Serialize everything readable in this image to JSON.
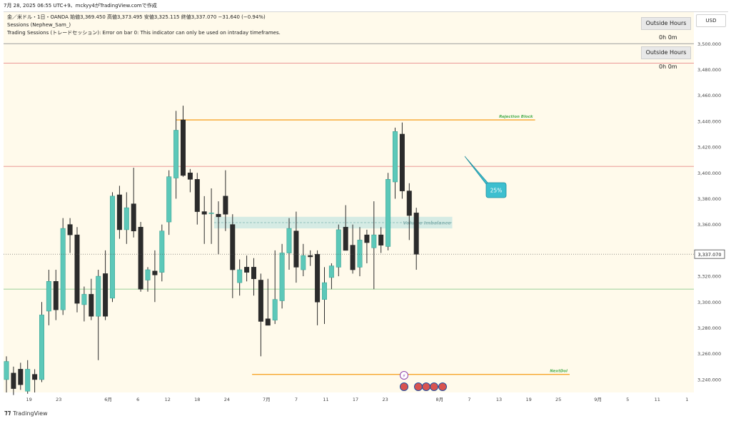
{
  "header": {
    "title": "7月 28, 2025 06:55 UTC+9、mckyy4がTradingView.comで作成"
  },
  "legend": {
    "symbol_line": "金／米ドル・1日・OANDA  始値3,369.450  高値3,373.495  安値3,325.115  終値3,337.070  −31.640 (−0.94%)",
    "indicator1": "Sessions (Nephew_Sam_)",
    "indicator2": "Trading Sessions (トレードセッション): Error on bar 0: This indicator can only be used on intraday timeframes."
  },
  "badges": {
    "b1_label": "Outside Hours",
    "b1_sub": "0h 0m",
    "b2_label": "Outside Hours",
    "b2_sub": "0h 0m"
  },
  "currency": "USD",
  "brand": "TradingView",
  "colors": {
    "up": "#5cc8b9",
    "down": "#2b2b2b",
    "bg": "#fffaeb",
    "orange": "#f7a529",
    "red": "#e88a8a",
    "green": "#8ec98e",
    "zone": "#bfe3e0",
    "callout": "#3dbfcf"
  },
  "chart_data": {
    "type": "candlestick",
    "ylim": [
      3230,
      3525
    ],
    "y_ticks": [
      3240,
      3260,
      3280,
      3300,
      3320,
      3340,
      3360,
      3380,
      3400,
      3420,
      3440,
      3460,
      3480,
      3500
    ],
    "y_tick_labels": [
      "3,240.000",
      "3,260.000",
      "3,280.000",
      "3,300.000",
      "3,320.000",
      "3,340.000",
      "3,360.000",
      "3,380.000",
      "3,400.000",
      "3,420.000",
      "3,440.000",
      "3,460.000",
      "3,480.000",
      "3,500.000"
    ],
    "x_ticks": [
      {
        "slot": 3.2,
        "label": "19"
      },
      {
        "slot": 7.4,
        "label": "23"
      },
      {
        "slot": 14.4,
        "label": "6月"
      },
      {
        "slot": 18.6,
        "label": "6"
      },
      {
        "slot": 22.8,
        "label": "12"
      },
      {
        "slot": 27.0,
        "label": "18"
      },
      {
        "slot": 31.2,
        "label": "24"
      },
      {
        "slot": 36.8,
        "label": "7月"
      },
      {
        "slot": 41.0,
        "label": "7"
      },
      {
        "slot": 45.2,
        "label": "11"
      },
      {
        "slot": 49.4,
        "label": "17"
      },
      {
        "slot": 53.6,
        "label": "23"
      },
      {
        "slot": 61.3,
        "label": "8月"
      },
      {
        "slot": 65.5,
        "label": "7"
      },
      {
        "slot": 69.7,
        "label": "13"
      },
      {
        "slot": 73.9,
        "label": "19"
      },
      {
        "slot": 78.1,
        "label": "25"
      },
      {
        "slot": 83.7,
        "label": "9月"
      },
      {
        "slot": 87.9,
        "label": "5"
      },
      {
        "slot": 92.1,
        "label": "11"
      },
      {
        "slot": 96.3,
        "label": "1"
      }
    ],
    "candles": [
      {
        "o": 3240,
        "h": 3258,
        "l": 3230,
        "c": 3254
      },
      {
        "o": 3245,
        "h": 3250,
        "l": 3228,
        "c": 3233
      },
      {
        "o": 3248,
        "h": 3253,
        "l": 3232,
        "c": 3236
      },
      {
        "o": 3231,
        "h": 3255,
        "l": 3229,
        "c": 3248
      },
      {
        "o": 3244,
        "h": 3248,
        "l": 3230,
        "c": 3240
      },
      {
        "o": 3240,
        "h": 3300,
        "l": 3238,
        "c": 3290
      },
      {
        "o": 3293,
        "h": 3325,
        "l": 3282,
        "c": 3316
      },
      {
        "o": 3316,
        "h": 3325,
        "l": 3286,
        "c": 3294
      },
      {
        "o": 3294,
        "h": 3365,
        "l": 3290,
        "c": 3357
      },
      {
        "o": 3360,
        "h": 3365,
        "l": 3338,
        "c": 3352
      },
      {
        "o": 3352,
        "h": 3358,
        "l": 3292,
        "c": 3299
      },
      {
        "o": 3298,
        "h": 3312,
        "l": 3285,
        "c": 3306
      },
      {
        "o": 3306,
        "h": 3318,
        "l": 3286,
        "c": 3289
      },
      {
        "o": 3289,
        "h": 3325,
        "l": 3255,
        "c": 3320
      },
      {
        "o": 3322,
        "h": 3340,
        "l": 3286,
        "c": 3289
      },
      {
        "o": 3303,
        "h": 3385,
        "l": 3300,
        "c": 3382
      },
      {
        "o": 3383,
        "h": 3390,
        "l": 3349,
        "c": 3356
      },
      {
        "o": 3356,
        "h": 3385,
        "l": 3345,
        "c": 3373
      },
      {
        "o": 3376,
        "h": 3404,
        "l": 3350,
        "c": 3355
      },
      {
        "o": 3358,
        "h": 3362,
        "l": 3308,
        "c": 3310
      },
      {
        "o": 3317,
        "h": 3327,
        "l": 3308,
        "c": 3325
      },
      {
        "o": 3324,
        "h": 3340,
        "l": 3300,
        "c": 3321
      },
      {
        "o": 3323,
        "h": 3360,
        "l": 3316,
        "c": 3355
      },
      {
        "o": 3362,
        "h": 3402,
        "l": 3352,
        "c": 3397
      },
      {
        "o": 3396,
        "h": 3448,
        "l": 3380,
        "c": 3433
      },
      {
        "o": 3441,
        "h": 3452,
        "l": 3397,
        "c": 3398
      },
      {
        "o": 3400,
        "h": 3403,
        "l": 3385,
        "c": 3395
      },
      {
        "o": 3395,
        "h": 3400,
        "l": 3360,
        "c": 3370
      },
      {
        "o": 3370,
        "h": 3382,
        "l": 3345,
        "c": 3368
      },
      {
        "o": 3369,
        "h": 3388,
        "l": 3345,
        "c": 3369
      },
      {
        "o": 3368,
        "h": 3378,
        "l": 3337,
        "c": 3366
      },
      {
        "o": 3382,
        "h": 3402,
        "l": 3355,
        "c": 3368
      },
      {
        "o": 3360,
        "h": 3368,
        "l": 3303,
        "c": 3325
      },
      {
        "o": 3315,
        "h": 3333,
        "l": 3305,
        "c": 3325
      },
      {
        "o": 3327,
        "h": 3336,
        "l": 3316,
        "c": 3323
      },
      {
        "o": 3327,
        "h": 3334,
        "l": 3305,
        "c": 3318
      },
      {
        "o": 3317,
        "h": 3322,
        "l": 3258,
        "c": 3285
      },
      {
        "o": 3287,
        "h": 3318,
        "l": 3282,
        "c": 3282
      },
      {
        "o": 3286,
        "h": 3340,
        "l": 3283,
        "c": 3302
      },
      {
        "o": 3301,
        "h": 3345,
        "l": 3295,
        "c": 3338
      },
      {
        "o": 3338,
        "h": 3365,
        "l": 3325,
        "c": 3357
      },
      {
        "o": 3355,
        "h": 3370,
        "l": 3315,
        "c": 3327
      },
      {
        "o": 3325,
        "h": 3345,
        "l": 3320,
        "c": 3336
      },
      {
        "o": 3336,
        "h": 3340,
        "l": 3328,
        "c": 3335
      },
      {
        "o": 3337,
        "h": 3340,
        "l": 3282,
        "c": 3300
      },
      {
        "o": 3302,
        "h": 3327,
        "l": 3283,
        "c": 3315
      },
      {
        "o": 3319,
        "h": 3330,
        "l": 3310,
        "c": 3328
      },
      {
        "o": 3327,
        "h": 3360,
        "l": 3320,
        "c": 3356
      },
      {
        "o": 3358,
        "h": 3375,
        "l": 3340,
        "c": 3340
      },
      {
        "o": 3344,
        "h": 3360,
        "l": 3322,
        "c": 3325
      },
      {
        "o": 3327,
        "h": 3358,
        "l": 3320,
        "c": 3348
      },
      {
        "o": 3352,
        "h": 3356,
        "l": 3330,
        "c": 3346
      },
      {
        "o": 3342,
        "h": 3378,
        "l": 3310,
        "c": 3352
      },
      {
        "o": 3352,
        "h": 3358,
        "l": 3338,
        "c": 3344
      },
      {
        "o": 3343,
        "h": 3400,
        "l": 3340,
        "c": 3395
      },
      {
        "o": 3393,
        "h": 3435,
        "l": 3380,
        "c": 3432
      },
      {
        "o": 3430,
        "h": 3439,
        "l": 3380,
        "c": 3386
      },
      {
        "o": 3386,
        "h": 3392,
        "l": 3348,
        "c": 3367
      },
      {
        "o": 3369,
        "h": 3373,
        "l": 3325,
        "c": 3337
      }
    ],
    "levels": [
      {
        "name": "Rejection Block",
        "price": 3441,
        "from": 25,
        "to": 77,
        "color": "orange"
      },
      {
        "name": "NextDol",
        "price": 3244,
        "from": 36,
        "to": 82,
        "color": "orange"
      },
      {
        "name": "",
        "price": 3500,
        "from": 0,
        "to": 100,
        "color": "gray"
      },
      {
        "name": "",
        "price": 3485,
        "from": 0,
        "to": 100,
        "color": "red"
      },
      {
        "name": "",
        "price": 3405,
        "from": 0,
        "to": 100,
        "color": "red"
      },
      {
        "name": "",
        "price": 3310,
        "from": 0,
        "to": 100,
        "color": "green"
      }
    ],
    "zone": {
      "name": "Volume Imbalance",
      "top": 3366,
      "bottom": 3357,
      "from": 30.5,
      "to": 65
    },
    "last_price": 3337.07,
    "last_price_label": "3,337.070",
    "callout": "25%"
  }
}
